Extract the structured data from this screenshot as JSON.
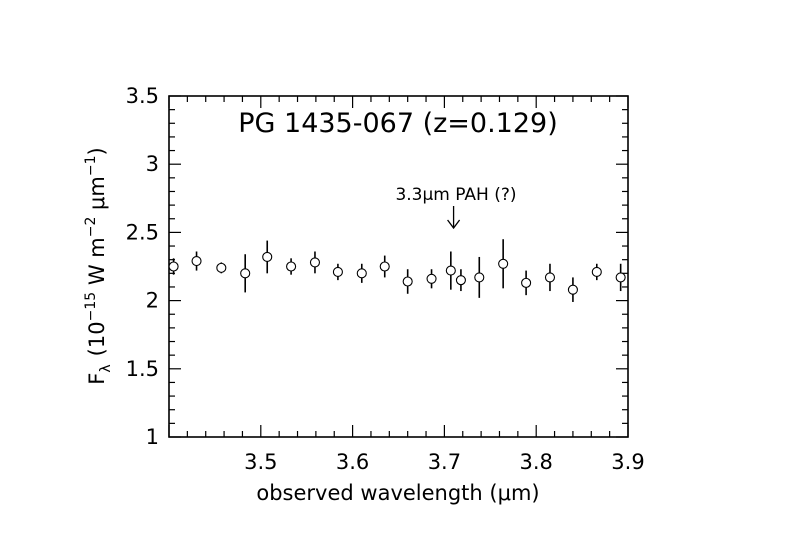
{
  "chart_data": {
    "type": "scatter",
    "title": "PG 1435-067 (z=0.129)",
    "xlabel": "observed wavelength (μm)",
    "ylabel": {
      "base": "F",
      "base_sub": "λ",
      "open": "(10",
      "exp1": "−15",
      "mid": " W m",
      "exp2": "−2",
      "mid2": " μm",
      "exp3": "−1",
      "close": ")"
    },
    "xlim": [
      3.4,
      3.9
    ],
    "ylim": [
      1,
      3.5
    ],
    "x_ticks": [
      "3.5",
      "3.6",
      "3.7",
      "3.8",
      "3.9"
    ],
    "y_ticks": [
      "1",
      "1.5",
      "2",
      "2.5",
      "3",
      "3.5"
    ],
    "grid": false,
    "annotation": {
      "text": "3.3μm PAH (?)",
      "arrow_x": 3.71
    },
    "series": [
      {
        "marker": "open-circle",
        "x": [
          3.405,
          3.43,
          3.457,
          3.483,
          3.507,
          3.533,
          3.559,
          3.584,
          3.61,
          3.635,
          3.66,
          3.686,
          3.707,
          3.718,
          3.738,
          3.764,
          3.789,
          3.815,
          3.84,
          3.866,
          3.892
        ],
        "y": [
          2.25,
          2.29,
          2.24,
          2.2,
          2.32,
          2.25,
          2.28,
          2.21,
          2.2,
          2.25,
          2.14,
          2.16,
          2.22,
          2.15,
          2.17,
          2.27,
          2.13,
          2.17,
          2.08,
          2.21,
          2.17
        ],
        "yerr": [
          0.06,
          0.07,
          0.04,
          0.14,
          0.12,
          0.06,
          0.08,
          0.06,
          0.07,
          0.08,
          0.09,
          0.07,
          0.14,
          0.08,
          0.15,
          0.18,
          0.09,
          0.1,
          0.09,
          0.06,
          0.1
        ]
      }
    ]
  }
}
